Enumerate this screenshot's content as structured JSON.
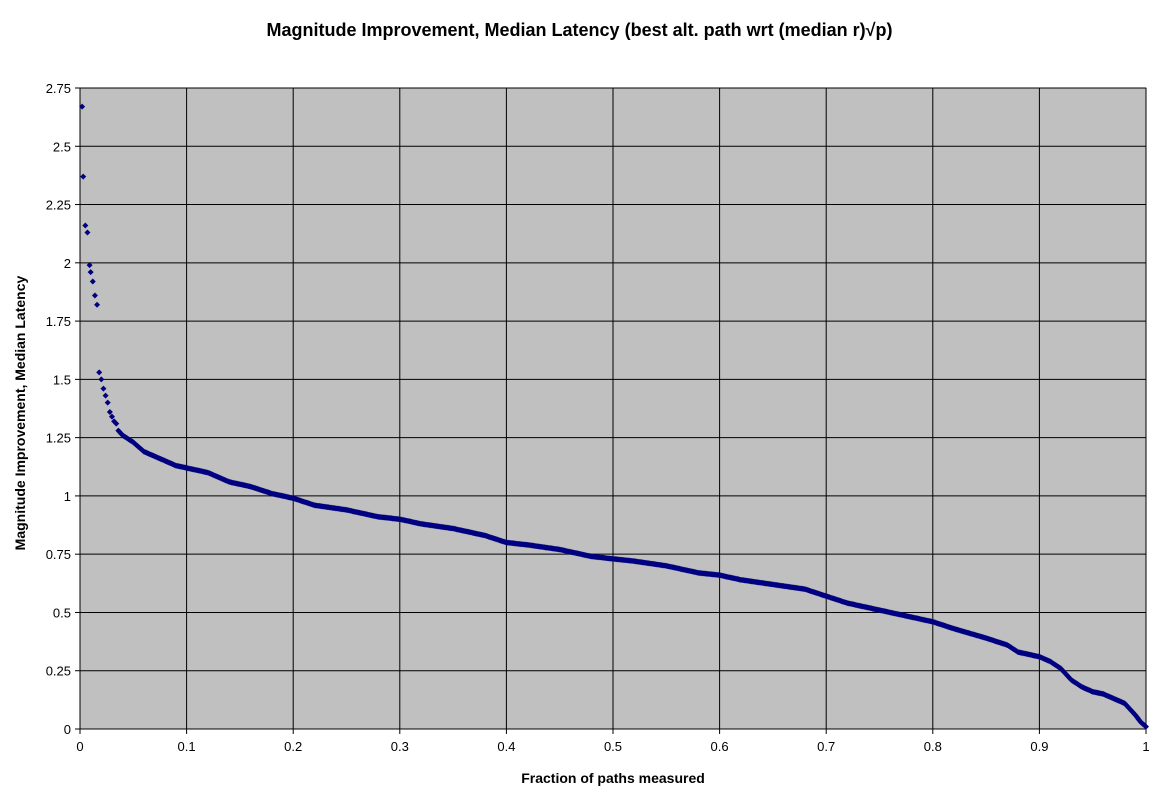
{
  "chart_data": {
    "type": "scatter",
    "title": "Magnitude Improvement, Median Latency (best alt. path wrt (median r)√p)",
    "xlabel": "Fraction of paths measured",
    "ylabel": "Magnitude Improvement, Median Latency",
    "xlim": [
      0,
      1
    ],
    "ylim": [
      0,
      2.75
    ],
    "x_ticks": [
      "0",
      "0.1",
      "0.2",
      "0.3",
      "0.4",
      "0.5",
      "0.6",
      "0.7",
      "0.8",
      "0.9",
      "1"
    ],
    "y_ticks": [
      "0",
      "0.25",
      "0.5",
      "0.75",
      "1",
      "1.25",
      "1.5",
      "1.75",
      "2",
      "2.25",
      "2.5",
      "2.75"
    ],
    "grid": true,
    "legend": "none",
    "plot_background": "#c0c0c0",
    "marker_color": "#000080",
    "series": [
      {
        "x": [
          0.002,
          0.003,
          0.005,
          0.007,
          0.009,
          0.01,
          0.012,
          0.014,
          0.016,
          0.018,
          0.02,
          0.022,
          0.024,
          0.026,
          0.028,
          0.03,
          0.032,
          0.034,
          0.036,
          0.038,
          0.04,
          0.05,
          0.06,
          0.07,
          0.08,
          0.09,
          0.1,
          0.12,
          0.14,
          0.16,
          0.18,
          0.2,
          0.22,
          0.25,
          0.28,
          0.3,
          0.32,
          0.35,
          0.38,
          0.4,
          0.42,
          0.45,
          0.48,
          0.5,
          0.52,
          0.55,
          0.58,
          0.6,
          0.62,
          0.65,
          0.68,
          0.7,
          0.72,
          0.75,
          0.78,
          0.8,
          0.82,
          0.85,
          0.87,
          0.88,
          0.9,
          0.91,
          0.92,
          0.93,
          0.94,
          0.95,
          0.96,
          0.97,
          0.98,
          0.99,
          0.995,
          1.0
        ],
        "y": [
          2.67,
          2.37,
          2.16,
          2.13,
          1.99,
          1.96,
          1.92,
          1.86,
          1.82,
          1.53,
          1.5,
          1.46,
          1.43,
          1.4,
          1.36,
          1.34,
          1.32,
          1.31,
          1.28,
          1.27,
          1.26,
          1.23,
          1.19,
          1.17,
          1.15,
          1.13,
          1.12,
          1.1,
          1.06,
          1.04,
          1.01,
          0.99,
          0.96,
          0.94,
          0.91,
          0.9,
          0.88,
          0.86,
          0.83,
          0.8,
          0.79,
          0.77,
          0.74,
          0.73,
          0.72,
          0.7,
          0.67,
          0.66,
          0.64,
          0.62,
          0.6,
          0.57,
          0.54,
          0.51,
          0.48,
          0.46,
          0.43,
          0.39,
          0.36,
          0.33,
          0.31,
          0.29,
          0.26,
          0.21,
          0.18,
          0.16,
          0.15,
          0.13,
          0.11,
          0.06,
          0.03,
          0.01
        ]
      }
    ]
  }
}
